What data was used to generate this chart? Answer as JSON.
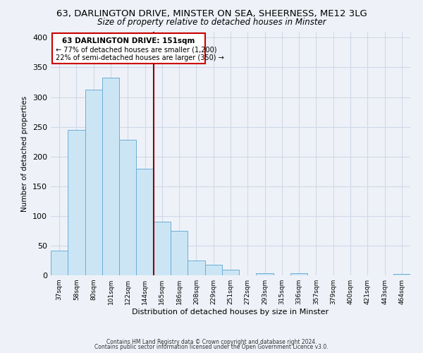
{
  "title1": "63, DARLINGTON DRIVE, MINSTER ON SEA, SHEERNESS, ME12 3LG",
  "title2": "Size of property relative to detached houses in Minster",
  "xlabel": "Distribution of detached houses by size in Minster",
  "ylabel": "Number of detached properties",
  "bar_labels": [
    "37sqm",
    "58sqm",
    "80sqm",
    "101sqm",
    "122sqm",
    "144sqm",
    "165sqm",
    "186sqm",
    "208sqm",
    "229sqm",
    "251sqm",
    "272sqm",
    "293sqm",
    "315sqm",
    "336sqm",
    "357sqm",
    "379sqm",
    "400sqm",
    "421sqm",
    "443sqm",
    "464sqm"
  ],
  "bar_values": [
    42,
    245,
    313,
    333,
    228,
    180,
    90,
    75,
    25,
    18,
    10,
    0,
    4,
    0,
    4,
    0,
    0,
    0,
    0,
    0,
    2
  ],
  "bar_color": "#cce5f5",
  "bar_edge_color": "#6baed6",
  "vline_x_index": 5,
  "property_line_label": "63 DARLINGTON DRIVE: 151sqm",
  "annotation_line1": "← 77% of detached houses are smaller (1,200)",
  "annotation_line2": "22% of semi-detached houses are larger (350) →",
  "ylim": [
    0,
    410
  ],
  "vline_color": "#8b0000",
  "footnote1": "Contains HM Land Registry data © Crown copyright and database right 2024.",
  "footnote2": "Contains public sector information licensed under the Open Government Licence v3.0.",
  "background_color": "#eef2f8",
  "grid_color": "#d0d8e8",
  "title1_fontsize": 9.5,
  "title2_fontsize": 8.5,
  "yticks": [
    0,
    50,
    100,
    150,
    200,
    250,
    300,
    350,
    400
  ]
}
